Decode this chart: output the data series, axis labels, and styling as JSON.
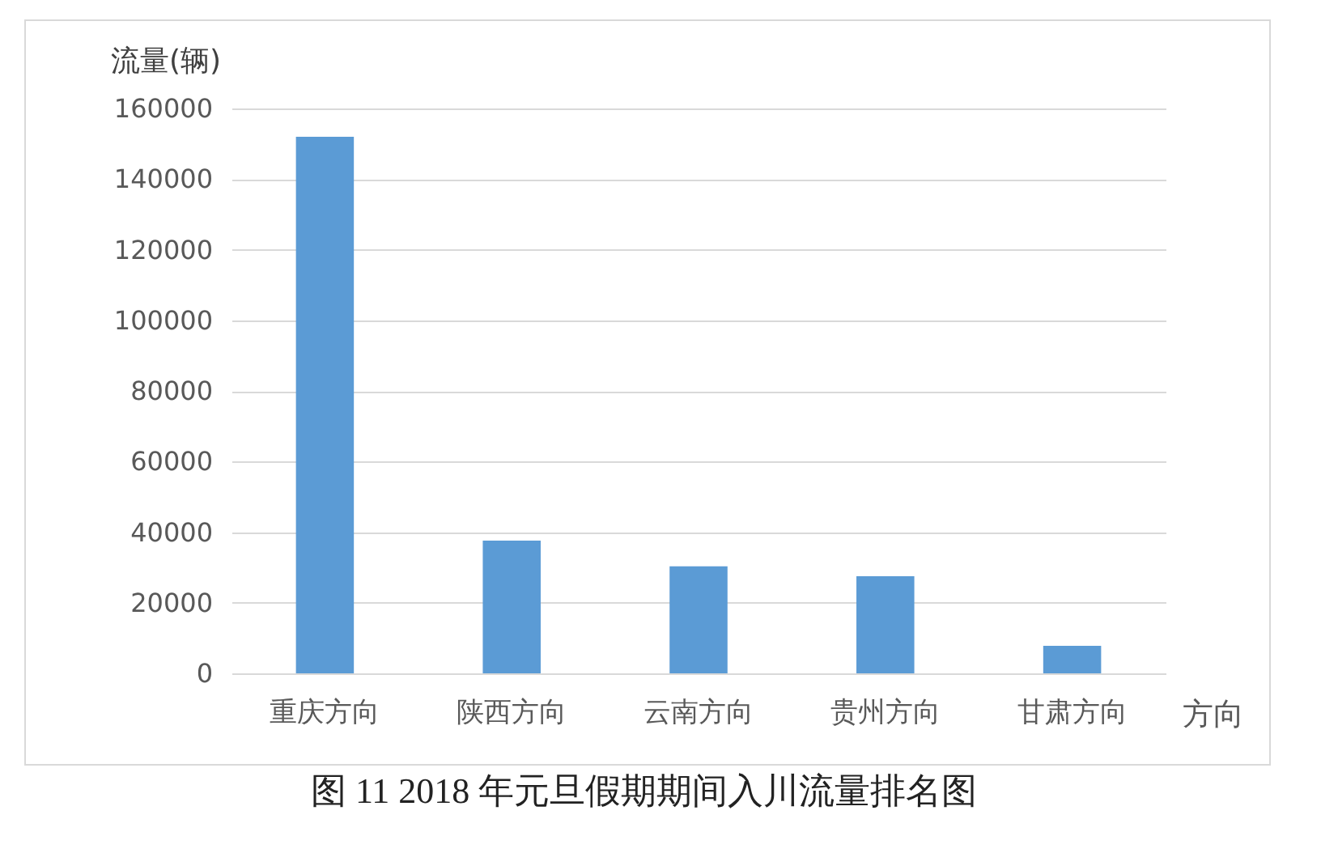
{
  "chart_data": {
    "type": "bar",
    "title": "图 11 2018 年元旦假期期间入川流量排名图",
    "xlabel": "方向",
    "ylabel": "流量(辆)",
    "categories": [
      "重庆方向",
      "陕西方向",
      "云南方向",
      "贵州方向",
      "甘肃方向"
    ],
    "values": [
      152000,
      37600,
      30300,
      27500,
      7800
    ],
    "color": "#5b9bd5",
    "ylim": [
      0,
      160000
    ],
    "yticks": [
      0,
      20000,
      40000,
      60000,
      80000,
      100000,
      120000,
      140000,
      160000
    ],
    "grid": "y"
  }
}
